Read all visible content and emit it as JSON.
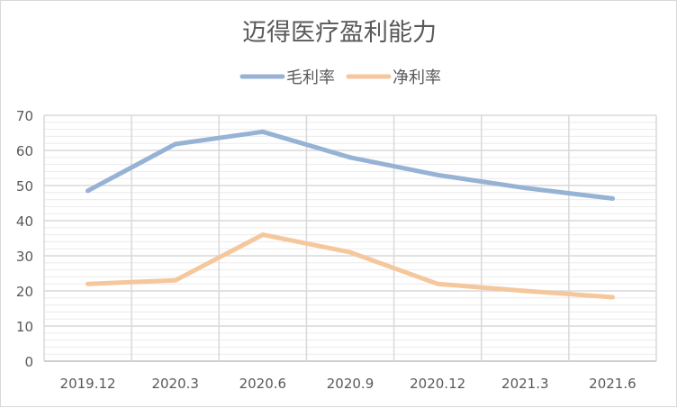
{
  "chart_data": {
    "type": "line",
    "title": "迈得医疗盈利能力",
    "xlabel": "",
    "ylabel": "",
    "categories": [
      "2019.12",
      "2020.3",
      "2020.6",
      "2020.9",
      "2020.12",
      "2021.3",
      "2021.6"
    ],
    "series": [
      {
        "name": "毛利率",
        "values": [
          48.5,
          61.8,
          65.3,
          58.0,
          53.0,
          49.3,
          46.3
        ],
        "color": "#96b2d4"
      },
      {
        "name": "净利率",
        "values": [
          22.0,
          23.0,
          36.0,
          31.0,
          22.0,
          20.0,
          18.2
        ],
        "color": "#f5c79c"
      }
    ],
    "ylim": [
      0,
      70
    ],
    "yticks": [
      0,
      10,
      20,
      30,
      40,
      50,
      60,
      70
    ],
    "grid": true,
    "legend": "top-center"
  }
}
